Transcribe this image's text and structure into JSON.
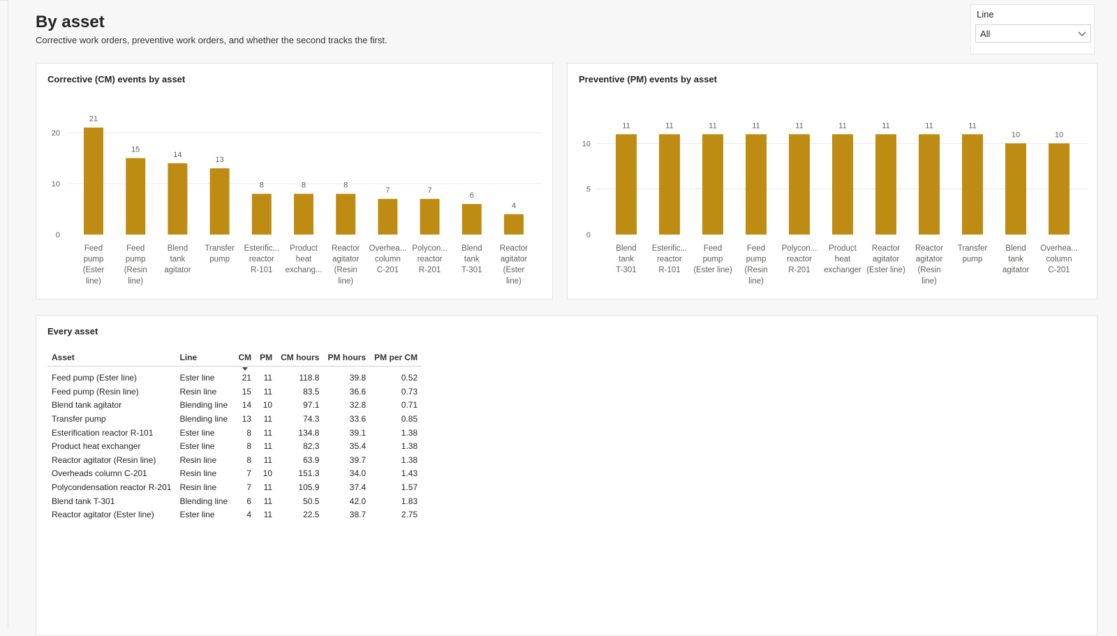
{
  "page": {
    "title": "By asset",
    "subtitle": "Corrective work orders, preventive work orders, and whether the second tracks the first."
  },
  "slicer": {
    "label": "Line",
    "value": "All"
  },
  "colors": {
    "bar": "#BF8C13",
    "grid": "#e8e8e8",
    "axis_text": "#605e5c"
  },
  "cm_chart": {
    "title": "Corrective (CM) events by asset",
    "chart_data": {
      "type": "bar",
      "categories": [
        [
          "Feed",
          "pump",
          "(Ester",
          "line)"
        ],
        [
          "Feed",
          "pump",
          "(Resin",
          "line)"
        ],
        [
          "Blend",
          "tank",
          "agitator"
        ],
        [
          "Transfer",
          "pump"
        ],
        [
          "Esterific...",
          "reactor",
          "R-101"
        ],
        [
          "Product",
          "heat",
          "exchang..."
        ],
        [
          "Reactor",
          "agitator",
          "(Resin",
          "line)"
        ],
        [
          "Overhea...",
          "column",
          "C-201"
        ],
        [
          "Polycon...",
          "reactor",
          "R-201"
        ],
        [
          "Blend",
          "tank",
          "T-301"
        ],
        [
          "Reactor",
          "agitator",
          "(Ester",
          "line)"
        ]
      ],
      "values": [
        21,
        15,
        14,
        13,
        8,
        8,
        8,
        7,
        7,
        6,
        4
      ],
      "yticks": [
        0,
        10,
        20
      ],
      "ylim": [
        0,
        23
      ],
      "grid": true
    }
  },
  "pm_chart": {
    "title": "Preventive (PM) events by asset",
    "chart_data": {
      "type": "bar",
      "categories": [
        [
          "Blend",
          "tank",
          "T-301"
        ],
        [
          "Esterific...",
          "reactor",
          "R-101"
        ],
        [
          "Feed",
          "pump",
          "(Ester line)"
        ],
        [
          "Feed",
          "pump",
          "(Resin",
          "line)"
        ],
        [
          "Polycon...",
          "reactor",
          "R-201"
        ],
        [
          "Product",
          "heat",
          "exchanger"
        ],
        [
          "Reactor",
          "agitator",
          "(Ester line)"
        ],
        [
          "Reactor",
          "agitator",
          "(Resin",
          "line)"
        ],
        [
          "Transfer",
          "pump"
        ],
        [
          "Blend",
          "tank",
          "agitator"
        ],
        [
          "Overhea...",
          "column",
          "C-201"
        ]
      ],
      "values": [
        11,
        11,
        11,
        11,
        11,
        11,
        11,
        11,
        11,
        10,
        10
      ],
      "yticks": [
        0,
        5,
        10
      ],
      "ylim": [
        0,
        12.2
      ],
      "grid": true
    }
  },
  "table": {
    "title": "Every asset",
    "columns": [
      "Asset",
      "Line",
      "CM",
      "PM",
      "CM hours",
      "PM hours",
      "PM per CM"
    ],
    "sorted_by": "CM",
    "rows": [
      [
        "Feed pump (Ester line)",
        "Ester line",
        "21",
        "11",
        "118.8",
        "39.8",
        "0.52"
      ],
      [
        "Feed pump (Resin line)",
        "Resin line",
        "15",
        "11",
        "83.5",
        "36.6",
        "0.73"
      ],
      [
        "Blend tank agitator",
        "Blending line",
        "14",
        "10",
        "97.1",
        "32.8",
        "0.71"
      ],
      [
        "Transfer pump",
        "Blending line",
        "13",
        "11",
        "74.3",
        "33.6",
        "0.85"
      ],
      [
        "Esterification reactor R-101",
        "Ester line",
        "8",
        "11",
        "134.8",
        "39.1",
        "1.38"
      ],
      [
        "Product heat exchanger",
        "Ester line",
        "8",
        "11",
        "82.3",
        "35.4",
        "1.38"
      ],
      [
        "Reactor agitator (Resin line)",
        "Resin line",
        "8",
        "11",
        "63.9",
        "39.7",
        "1.38"
      ],
      [
        "Overheads column C-201",
        "Resin line",
        "7",
        "10",
        "151.3",
        "34.0",
        "1.43"
      ],
      [
        "Polycondensation reactor R-201",
        "Resin line",
        "7",
        "11",
        "105.9",
        "37.4",
        "1.57"
      ],
      [
        "Blend tank T-301",
        "Blending line",
        "6",
        "11",
        "50.5",
        "42.0",
        "1.83"
      ],
      [
        "Reactor agitator (Ester line)",
        "Ester line",
        "4",
        "11",
        "22.5",
        "38.7",
        "2.75"
      ]
    ]
  }
}
